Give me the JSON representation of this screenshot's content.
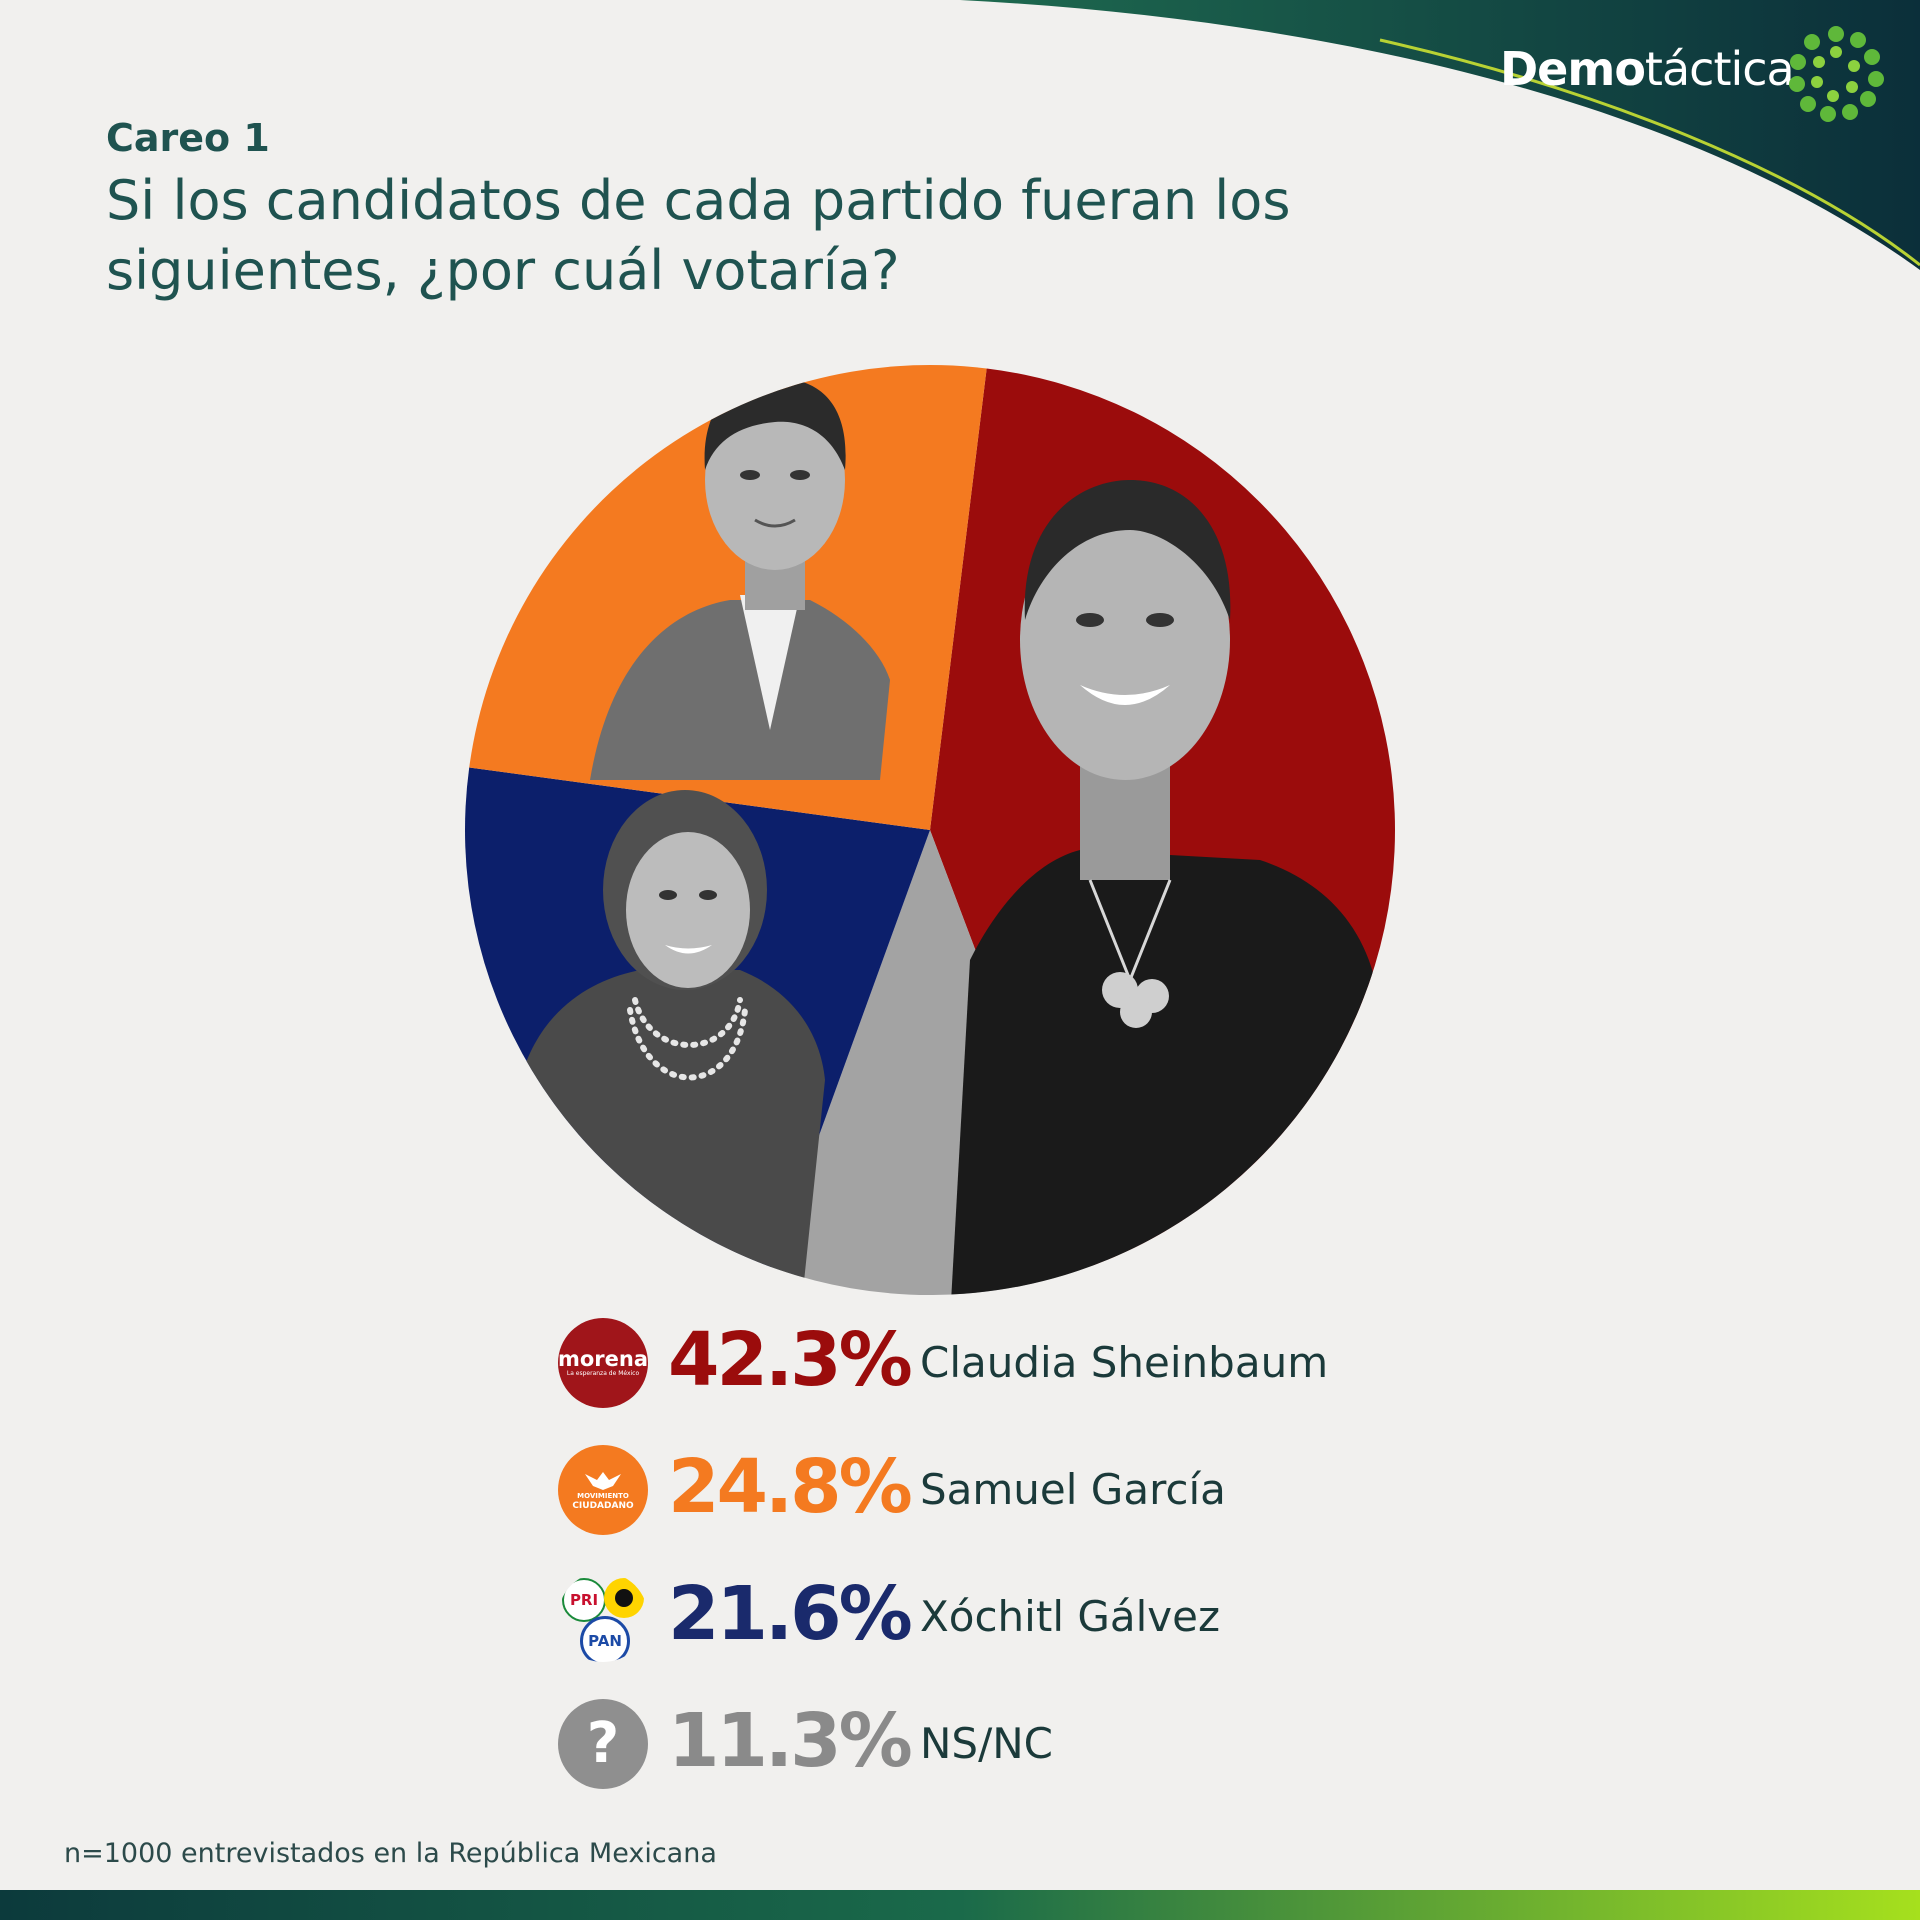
{
  "brand": {
    "bold": "Demo",
    "light": "táctica"
  },
  "header": {
    "subtitle": "Careo 1",
    "question": "Si los candidatos de cada partido fueran los siguientes, ¿por cuál votaría?"
  },
  "colors": {
    "morena": "#9b0c0c",
    "mc": "#f47a20",
    "pan": "#0c1f6b",
    "nsnc": "#a3a3a3",
    "brand_dark": "#0f3b3a",
    "brand_green": "#5fb83a"
  },
  "chart_data": {
    "type": "pie",
    "title": "",
    "slices": [
      {
        "label": "Claudia Sheinbaum",
        "value": 42.3,
        "display": "42.3%",
        "color": "#9b0c0c",
        "party": "morena"
      },
      {
        "label": "NS/NC",
        "value": 11.3,
        "display": "11.3%",
        "color": "#a3a3a3",
        "party": "question"
      },
      {
        "label": "Xóchitl Gálvez",
        "value": 21.6,
        "display": "21.6%",
        "color": "#0c1f6b",
        "party": "pri-prd-pan"
      },
      {
        "label": "Samuel García",
        "value": 24.8,
        "display": "24.8%",
        "color": "#f47a20",
        "party": "movimiento-ciudadano"
      }
    ],
    "legend_order": [
      {
        "label": "Claudia Sheinbaum",
        "display": "42.3%",
        "color": "#9b0c0c",
        "icon": "morena-logo-icon"
      },
      {
        "label": "Samuel García",
        "display": "24.8%",
        "color": "#f47a20",
        "icon": "movimiento-ciudadano-logo-icon"
      },
      {
        "label": "Xóchitl Gálvez",
        "display": "21.6%",
        "color": "#1a2a6c",
        "icon": "pri-prd-pan-logo-icon"
      },
      {
        "label": "NS/NC",
        "display": "11.3%",
        "color": "#8a8a8a",
        "icon": "question-icon"
      }
    ],
    "legend_placement": "bottom"
  },
  "logos": {
    "morena": {
      "name": "morena",
      "tagline": "La esperanza de México"
    },
    "mc": {
      "line1": "MOVIMIENTO",
      "line2": "CIUDADANO"
    },
    "coalition": {
      "pri": "PRI",
      "pan": "PAN"
    },
    "question": "?"
  },
  "footnote": "n=1000 entrevistados en la República Mexicana"
}
